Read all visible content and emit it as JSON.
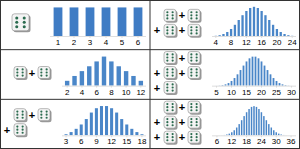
{
  "operator": "+",
  "dice_panels": [
    {
      "dice": 1
    },
    {
      "dice": 2
    },
    {
      "dice": 3
    },
    {
      "dice": 4
    },
    {
      "dice": 5
    },
    {
      "dice": 6
    }
  ],
  "chart_data": [
    {
      "type": "bar",
      "color": "#3f7cc4",
      "tick_labels": "x",
      "x": [
        1,
        2,
        3,
        4,
        5,
        6
      ],
      "values": [
        1,
        1,
        1,
        1,
        1,
        1
      ],
      "xlim": [
        0.5,
        6.5
      ],
      "xticks": [
        1,
        2,
        3,
        4,
        5,
        6
      ],
      "ylim": [
        0,
        1.12
      ]
    },
    {
      "type": "bar",
      "color": "#4a86c8",
      "tick_labels": "x",
      "x": [
        2,
        3,
        4,
        5,
        6,
        7,
        8,
        9,
        10,
        11,
        12
      ],
      "values": [
        1,
        2,
        3,
        4,
        5,
        6,
        5,
        4,
        3,
        2,
        1
      ],
      "xlim": [
        1.3,
        12.7
      ],
      "xticks": [
        2,
        4,
        6,
        8,
        10,
        12
      ],
      "ylim": [
        0,
        6.6
      ]
    },
    {
      "type": "bar",
      "color": "#4a86c8",
      "tick_labels": "x",
      "x": [
        3,
        4,
        5,
        6,
        7,
        8,
        9,
        10,
        11,
        12,
        13,
        14,
        15,
        16,
        17,
        18
      ],
      "values": [
        1,
        3,
        6,
        10,
        15,
        21,
        25,
        27,
        27,
        25,
        21,
        15,
        10,
        6,
        3,
        1
      ],
      "xlim": [
        2.2,
        18.8
      ],
      "xticks": [
        3,
        6,
        9,
        12,
        15,
        18
      ],
      "ylim": [
        0,
        29.5
      ]
    },
    {
      "type": "bar",
      "color": "#4a86c8",
      "tick_labels": "x",
      "x": [
        4,
        5,
        6,
        7,
        8,
        9,
        10,
        11,
        12,
        13,
        14,
        15,
        16,
        17,
        18,
        19,
        20,
        21,
        22,
        23,
        24
      ],
      "values": [
        1,
        4,
        10,
        20,
        35,
        56,
        80,
        104,
        125,
        140,
        146,
        140,
        125,
        104,
        80,
        56,
        35,
        20,
        10,
        4,
        1
      ],
      "xlim": [
        3,
        25
      ],
      "xticks": [
        4,
        8,
        12,
        16,
        20,
        24
      ],
      "ylim": [
        0,
        160
      ]
    },
    {
      "type": "bar",
      "color": "#4a86c8",
      "tick_labels": "x",
      "x": [
        5,
        6,
        7,
        8,
        9,
        10,
        11,
        12,
        13,
        14,
        15,
        16,
        17,
        18,
        19,
        20,
        21,
        22,
        23,
        24,
        25,
        26,
        27,
        28,
        29,
        30
      ],
      "values": [
        1,
        5,
        15,
        35,
        70,
        126,
        205,
        305,
        420,
        540,
        651,
        735,
        780,
        780,
        735,
        651,
        540,
        420,
        305,
        205,
        126,
        70,
        35,
        15,
        5,
        1
      ],
      "xlim": [
        3.5,
        31.5
      ],
      "xticks": [
        5,
        10,
        15,
        20,
        25,
        30
      ],
      "ylim": [
        0,
        860
      ]
    },
    {
      "type": "bar",
      "color": "#4a86c8",
      "tick_labels": "x",
      "x": [
        6,
        7,
        8,
        9,
        10,
        11,
        12,
        13,
        14,
        15,
        16,
        17,
        18,
        19,
        20,
        21,
        22,
        23,
        24,
        25,
        26,
        27,
        28,
        29,
        30,
        31,
        32,
        33,
        34,
        35,
        36
      ],
      "values": [
        1,
        6,
        21,
        56,
        126,
        252,
        456,
        756,
        1161,
        1666,
        2247,
        2856,
        3431,
        3906,
        4221,
        4332,
        4221,
        3906,
        3431,
        2856,
        2247,
        1666,
        1161,
        756,
        456,
        252,
        126,
        56,
        21,
        6,
        1
      ],
      "xlim": [
        4,
        38
      ],
      "xticks": [
        6,
        12,
        18,
        24,
        30,
        36
      ],
      "ylim": [
        0,
        4750
      ]
    }
  ]
}
